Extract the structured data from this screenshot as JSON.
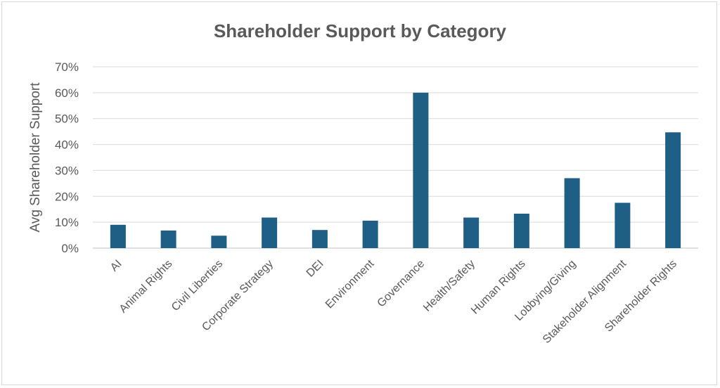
{
  "chart_data": {
    "type": "bar",
    "title": "Shareholder Support by Category",
    "ylabel": "Avg Shareholder Support",
    "xlabel": "",
    "ylim": [
      0,
      0.7
    ],
    "yticks": [
      "0%",
      "10%",
      "20%",
      "30%",
      "40%",
      "50%",
      "60%",
      "70%"
    ],
    "grid": true,
    "bar_color": "#1f5f86",
    "categories": [
      "AI",
      "Animal Rights",
      "Civil Liberties",
      "Corporate Strategy",
      "DEI",
      "Environment",
      "Governance",
      "Health/Safety",
      "Human Rights",
      "Lobbying/Giving",
      "Stakeholder Alignment",
      "Shareholder Rights"
    ],
    "values": [
      0.09,
      0.068,
      0.048,
      0.118,
      0.07,
      0.106,
      0.6,
      0.118,
      0.133,
      0.27,
      0.175,
      0.447
    ]
  }
}
